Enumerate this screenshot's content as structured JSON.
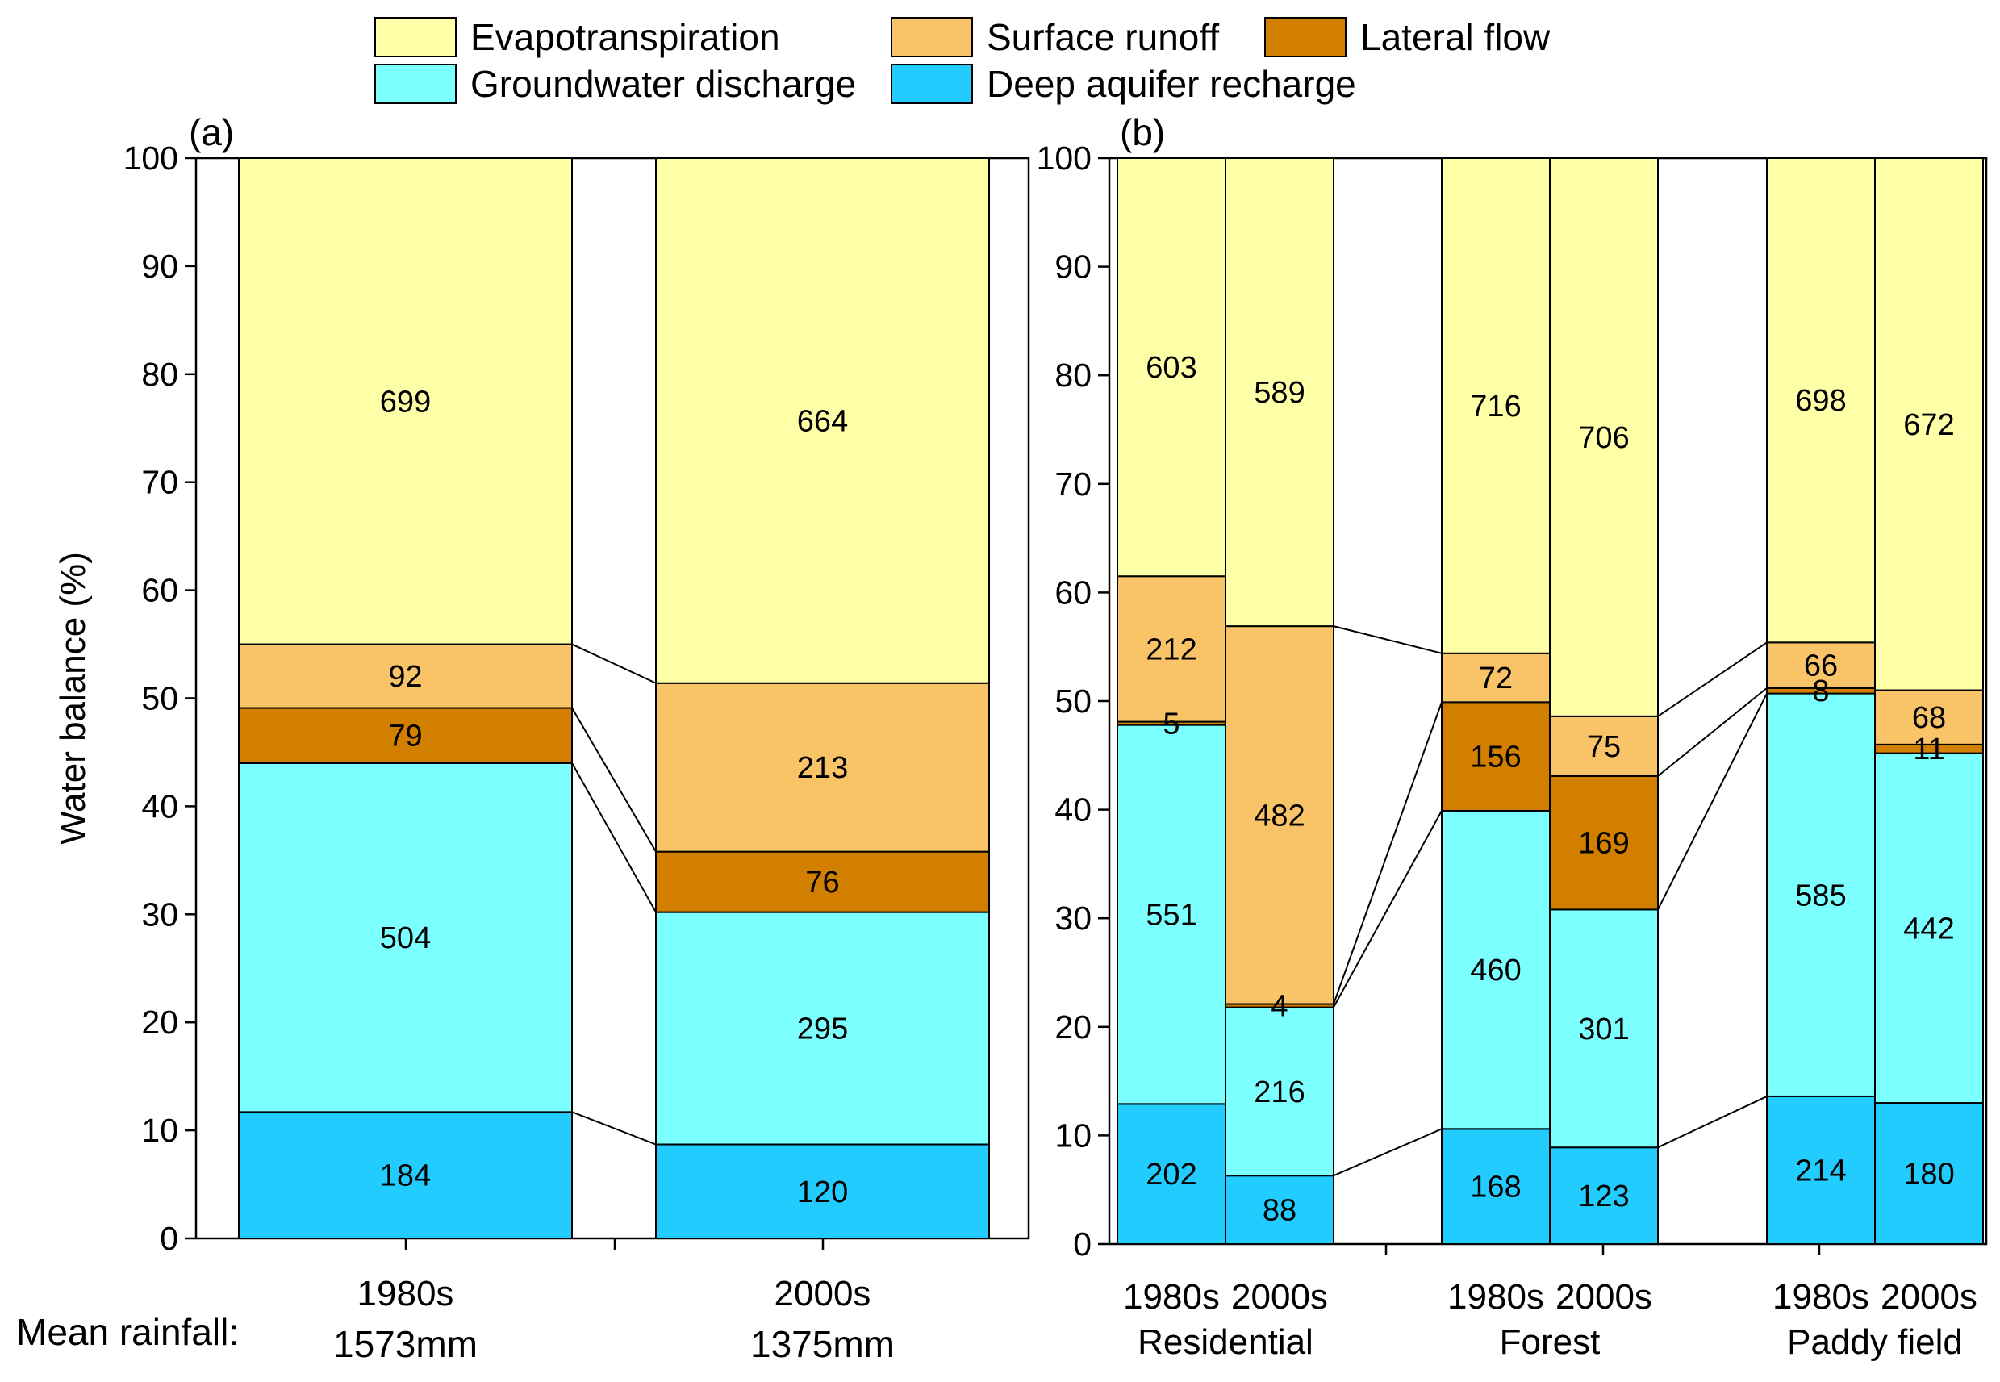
{
  "legend": [
    {
      "key": "et",
      "label": "Evapotranspiration",
      "color": "#FFFFA8"
    },
    {
      "key": "sr",
      "label": "Surface runoff",
      "color": "#F9C468"
    },
    {
      "key": "lf",
      "label": "Lateral flow",
      "color": "#D27F00"
    },
    {
      "key": "gw",
      "label": "Groundwater discharge",
      "color": "#7CFFFF"
    },
    {
      "key": "dr",
      "label": "Deep aquifer recharge",
      "color": "#22CCFF"
    }
  ],
  "footer": {
    "rainfall_label": "Mean rainfall:"
  },
  "chart_data": [
    {
      "type": "bar",
      "stacked": true,
      "panel_label": "(a)",
      "ylabel": "Water balance (%)",
      "ylim": [
        0,
        100
      ],
      "yticks": [
        0,
        10,
        20,
        30,
        40,
        50,
        60,
        70,
        80,
        90,
        100
      ],
      "categories": [
        "1980s",
        "2000s"
      ],
      "rainfall": [
        "1573mm",
        "1375mm"
      ],
      "series": [
        {
          "key": "dr",
          "name": "Deep aquifer recharge",
          "values": [
            11.7,
            8.7
          ],
          "labels": [
            "184",
            "120"
          ]
        },
        {
          "key": "gw",
          "name": "Groundwater discharge",
          "values": [
            32.3,
            21.5
          ],
          "labels": [
            "504",
            "295"
          ]
        },
        {
          "key": "lf",
          "name": "Lateral flow",
          "values": [
            5.1,
            5.6
          ],
          "labels": [
            "79",
            "76"
          ]
        },
        {
          "key": "sr",
          "name": "Surface runoff",
          "values": [
            5.9,
            15.6
          ],
          "labels": [
            "92",
            "213"
          ]
        },
        {
          "key": "et",
          "name": "Evapotranspiration",
          "values": [
            45.0,
            48.6
          ],
          "labels": [
            "699",
            "664"
          ]
        }
      ]
    },
    {
      "type": "bar",
      "stacked": true,
      "panel_label": "(b)",
      "ylim": [
        0,
        100
      ],
      "yticks": [
        0,
        10,
        20,
        30,
        40,
        50,
        60,
        70,
        80,
        90,
        100
      ],
      "categories": [
        "1980s",
        "2000s",
        "1980s",
        "2000s",
        "1980s",
        "2000s"
      ],
      "groups": [
        {
          "label": "Residential",
          "bars": [
            0,
            1
          ]
        },
        {
          "label": "Forest",
          "bars": [
            2,
            3
          ]
        },
        {
          "label": "Paddy field",
          "bars": [
            4,
            5
          ]
        }
      ],
      "series": [
        {
          "key": "dr",
          "name": "Deep aquifer recharge",
          "values": [
            12.9,
            6.3,
            10.6,
            8.9,
            13.6,
            13.0
          ],
          "labels": [
            "202",
            "88",
            "168",
            "123",
            "214",
            "180"
          ]
        },
        {
          "key": "gw",
          "name": "Groundwater discharge",
          "values": [
            34.9,
            15.5,
            29.3,
            21.9,
            37.1,
            32.2
          ],
          "labels": [
            "551",
            "216",
            "460",
            "301",
            "585",
            "442"
          ]
        },
        {
          "key": "lf",
          "name": "Lateral flow",
          "values": [
            0.3,
            0.3,
            10.0,
            12.3,
            0.5,
            0.8
          ],
          "labels": [
            "5",
            "4",
            "156",
            "169",
            "8",
            "11"
          ]
        },
        {
          "key": "sr",
          "name": "Surface runoff",
          "values": [
            13.4,
            34.8,
            4.5,
            5.5,
            4.2,
            5.0
          ],
          "labels": [
            "212",
            "482",
            "72",
            "75",
            "66",
            "68"
          ]
        },
        {
          "key": "et",
          "name": "Evapotranspiration",
          "values": [
            38.5,
            43.1,
            45.6,
            51.4,
            44.6,
            49.0
          ],
          "labels": [
            "603",
            "589",
            "716",
            "706",
            "698",
            "672"
          ]
        }
      ]
    }
  ]
}
